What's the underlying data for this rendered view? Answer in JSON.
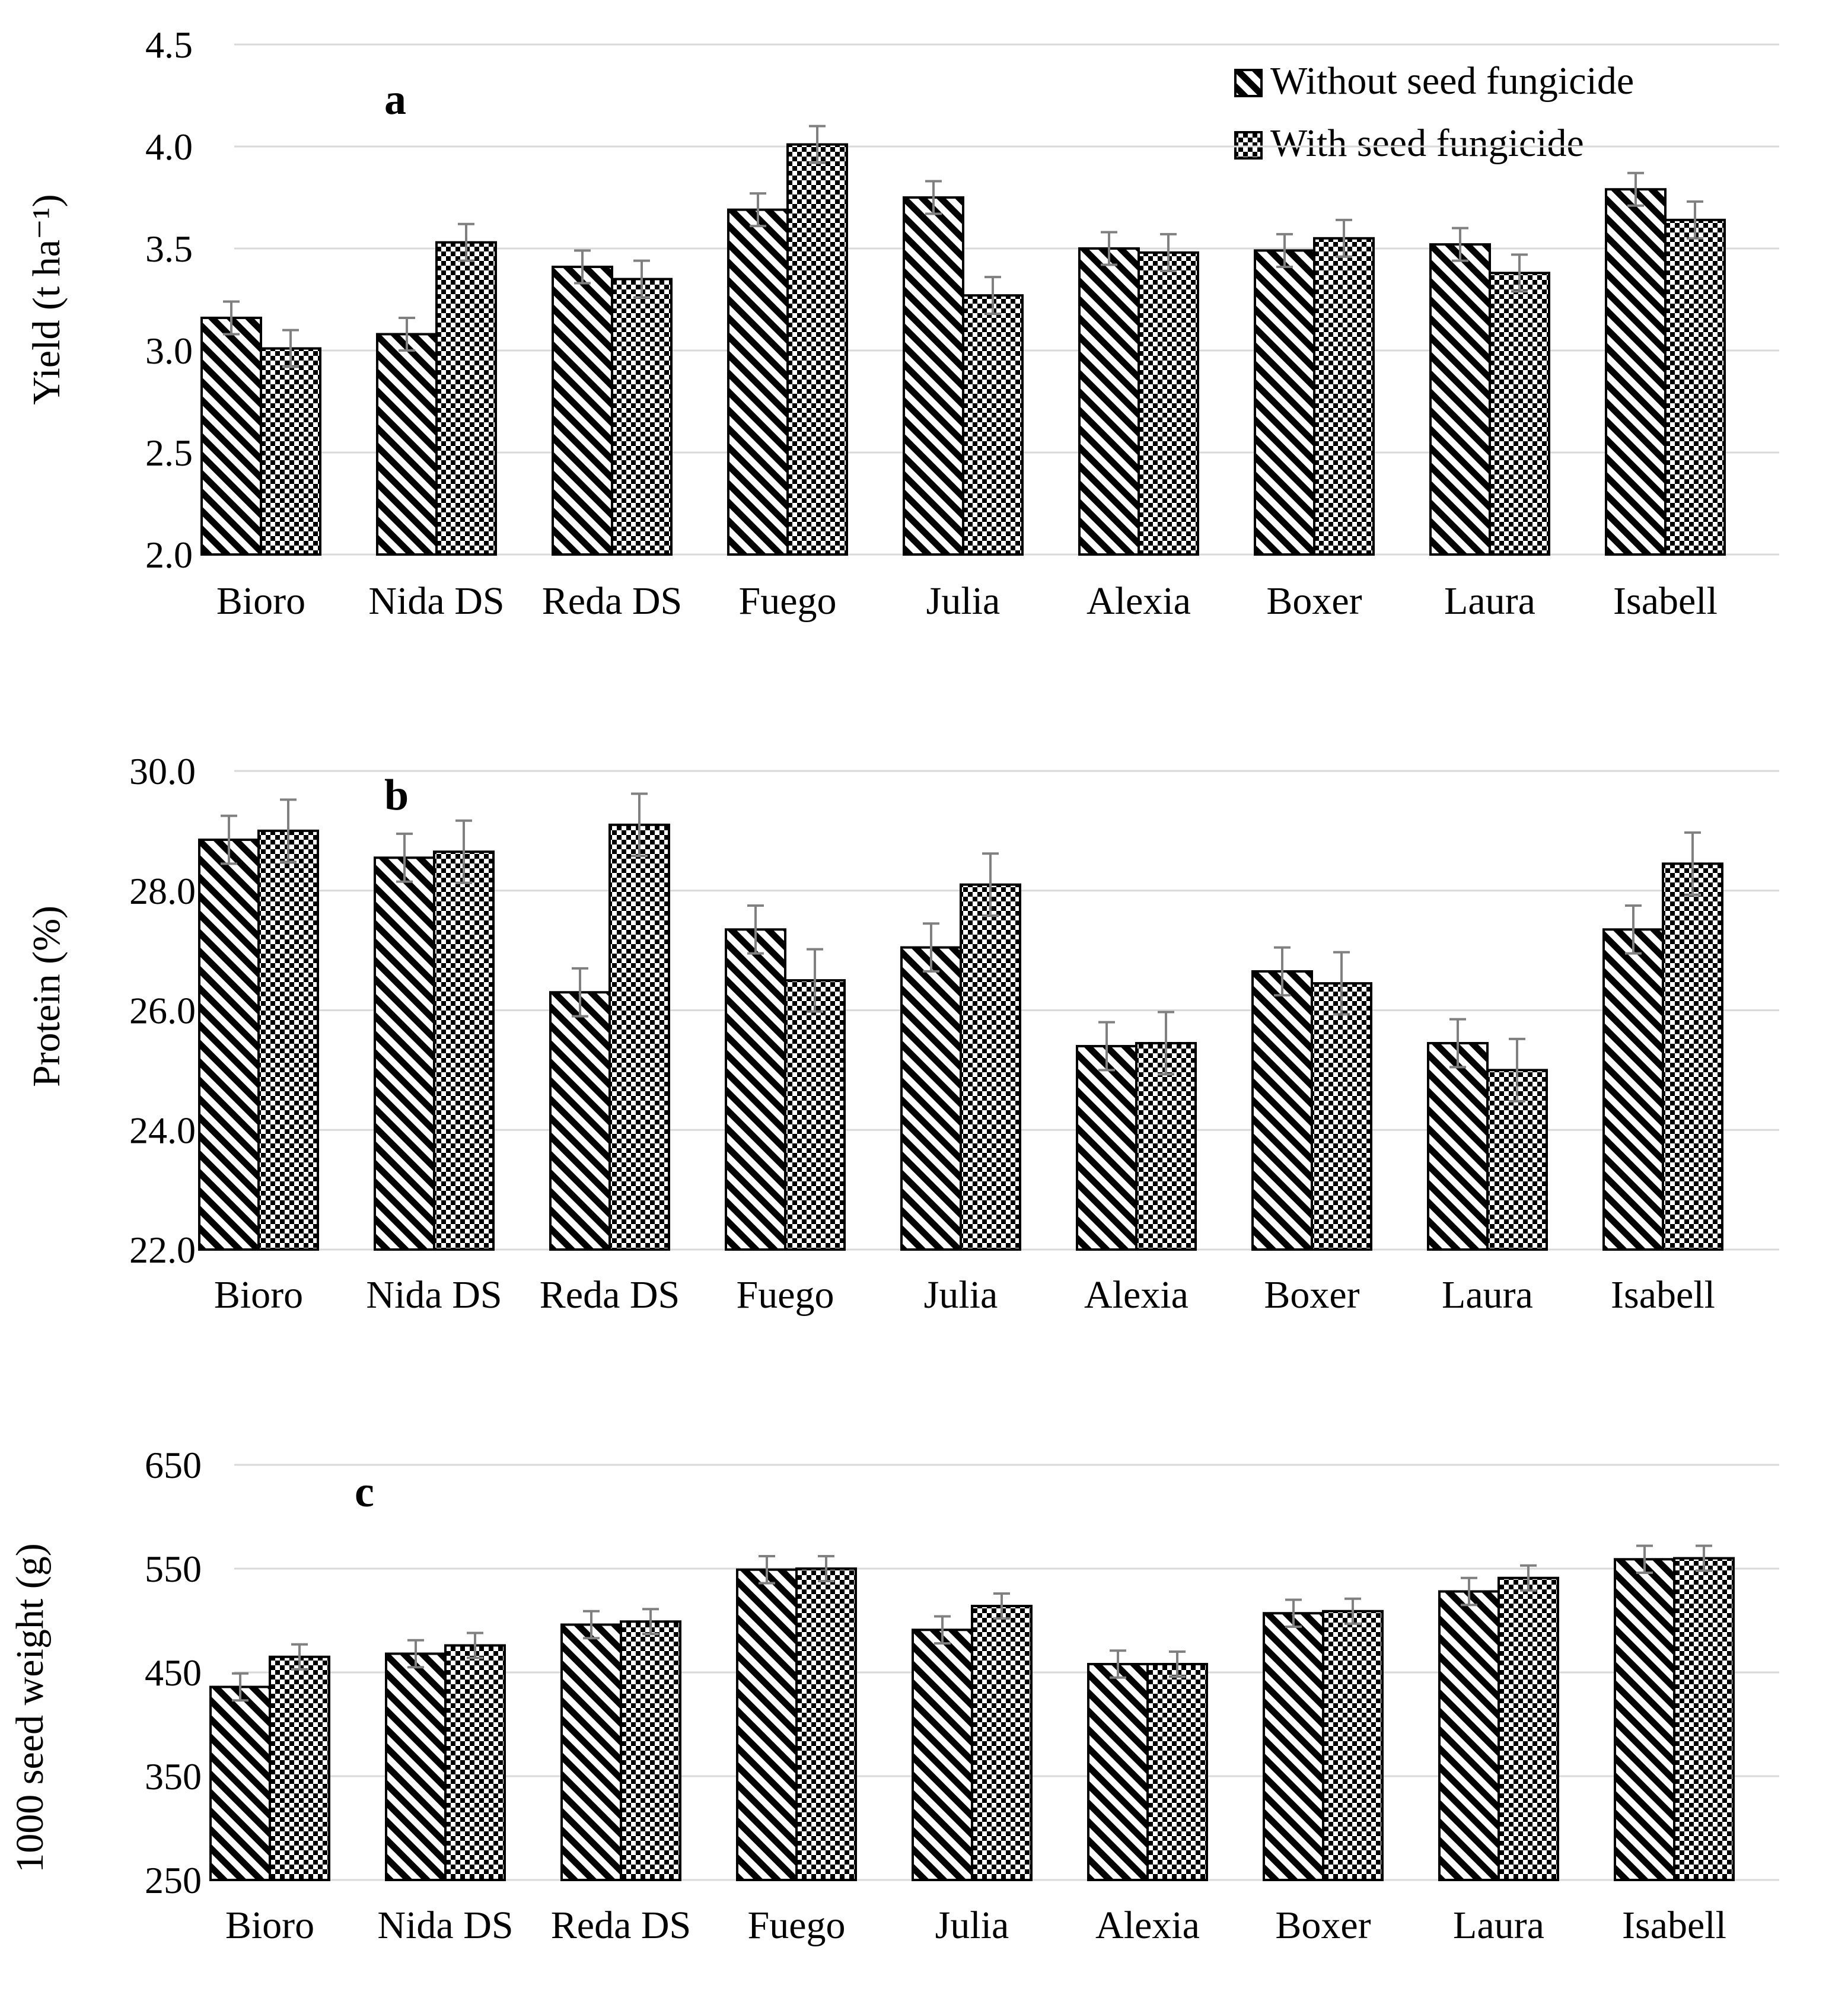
{
  "colors": {
    "bar_fill": "#000000",
    "bar_background": "#ffffff",
    "gridline": "#d9d9d9",
    "error_bar": "#808080"
  },
  "legend": {
    "placement": "top-right",
    "items": [
      {
        "label": "Without seed fungicide",
        "pattern": "diagonal-hatch"
      },
      {
        "label": "With seed fungicide",
        "pattern": "checkerboard"
      }
    ]
  },
  "chart_data": [
    {
      "type": "bar",
      "panel_label": "a",
      "ylabel": "Yield (t ha⁻¹)",
      "ylim": [
        2.0,
        4.5
      ],
      "yticks": [
        "2.0",
        "2.5",
        "3.0",
        "3.5",
        "4.0",
        "4.5"
      ],
      "grid": true,
      "categories": [
        "Bioro",
        "Nida DS",
        "Reda DS",
        "Fuego",
        "Julia",
        "Alexia",
        "Boxer",
        "Laura",
        "Isabell"
      ],
      "series": [
        {
          "name": "Without seed fungicide",
          "values": [
            3.16,
            3.08,
            3.41,
            3.69,
            3.75,
            3.5,
            3.49,
            3.52,
            3.79
          ],
          "errors": [
            0.08,
            0.08,
            0.08,
            0.08,
            0.08,
            0.08,
            0.08,
            0.08,
            0.08
          ]
        },
        {
          "name": "With seed fungicide",
          "values": [
            3.01,
            3.53,
            3.35,
            4.01,
            3.27,
            3.48,
            3.55,
            3.38,
            3.64
          ],
          "errors": [
            0.09,
            0.09,
            0.09,
            0.09,
            0.09,
            0.09,
            0.09,
            0.09,
            0.09
          ]
        }
      ]
    },
    {
      "type": "bar",
      "panel_label": "b",
      "ylabel": "Protein (%)",
      "ylim": [
        22.0,
        30.0
      ],
      "yticks": [
        "22.0",
        "24.0",
        "26.0",
        "28.0",
        "30.0"
      ],
      "grid": true,
      "categories": [
        "Bioro",
        "Nida DS",
        "Reda DS",
        "Fuego",
        "Julia",
        "Alexia",
        "Boxer",
        "Laura",
        "Isabell"
      ],
      "series": [
        {
          "name": "Without seed fungicide",
          "values": [
            28.85,
            28.55,
            26.3,
            27.35,
            27.05,
            25.4,
            26.65,
            25.45,
            27.35
          ],
          "errors": [
            0.4,
            0.4,
            0.4,
            0.4,
            0.4,
            0.4,
            0.4,
            0.4,
            0.4
          ]
        },
        {
          "name": "With seed fungicide",
          "values": [
            29.0,
            28.65,
            29.1,
            26.5,
            28.1,
            25.45,
            26.45,
            25.0,
            28.45
          ],
          "errors": [
            0.52,
            0.52,
            0.52,
            0.52,
            0.52,
            0.52,
            0.52,
            0.52,
            0.52
          ]
        }
      ]
    },
    {
      "type": "bar",
      "panel_label": "c",
      "ylabel": "1000 seed weight (g)",
      "ylim": [
        250,
        650
      ],
      "yticks": [
        "250",
        "350",
        "450",
        "550",
        "650"
      ],
      "grid": true,
      "categories": [
        "Bioro",
        "Nida DS",
        "Reda DS",
        "Fuego",
        "Julia",
        "Alexia",
        "Boxer",
        "Laura",
        "Isabell"
      ],
      "series": [
        {
          "name": "Without seed fungicide",
          "values": [
            436,
            468,
            496,
            549,
            491,
            458,
            507,
            528,
            559
          ],
          "errors": [
            13,
            13,
            13,
            13,
            13,
            13,
            13,
            13,
            13
          ]
        },
        {
          "name": "With seed fungicide",
          "values": [
            465,
            476,
            499,
            550,
            514,
            458,
            509,
            541,
            560
          ],
          "errors": [
            12,
            12,
            12,
            12,
            12,
            12,
            12,
            12,
            12
          ]
        }
      ]
    }
  ]
}
